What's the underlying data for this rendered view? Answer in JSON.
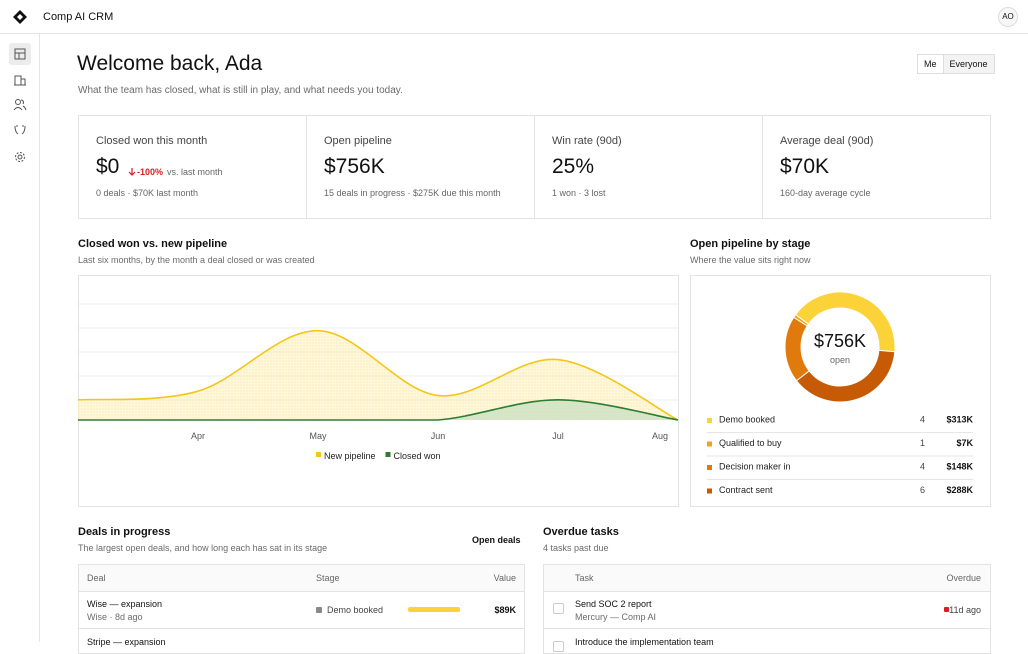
{
  "header": {
    "app_name": "Comp AI CRM",
    "avatar": "AO"
  },
  "welcome": {
    "title": "Welcome back, Ada",
    "subtitle": "What the team has closed, what is still in play, and what needs you today.",
    "toggle": [
      "Me",
      "Everyone"
    ]
  },
  "kpis": [
    {
      "label": "Closed won this month",
      "value": "$0",
      "delta": "-100%",
      "delta_note": "vs. last month",
      "note": "0 deals · $70K last month"
    },
    {
      "label": "Open pipeline",
      "value": "$756K",
      "note": "15 deals in progress · $275K due this month"
    },
    {
      "label": "Win rate (90d)",
      "value": "25%",
      "note": "1 won · 3 lost"
    },
    {
      "label": "Average deal (90d)",
      "value": "$70K",
      "note": "160-day average cycle"
    }
  ],
  "trend_chart": {
    "type": "area",
    "title": "Closed won vs. new pipeline",
    "subtitle": "Last six months, by the month a deal closed or was created",
    "categories": [
      null,
      "Apr",
      "May",
      "Jun",
      "Jul",
      "Aug"
    ],
    "ylim": [
      0,
      500
    ],
    "series": [
      {
        "name": "New pipeline",
        "color": "#f5c518",
        "values": [
          70,
          100,
          310,
          85,
          210,
          0
        ]
      },
      {
        "name": "Closed won",
        "color": "#2e7d32",
        "values": [
          0,
          0,
          0,
          0,
          70,
          0
        ]
      }
    ]
  },
  "stage_chart": {
    "type": "donut",
    "title": "Open pipeline by stage",
    "subtitle": "Where the value sits right now",
    "center_value": "$756K",
    "center_label": "open",
    "stages": [
      {
        "name": "Demo booked",
        "count": 4,
        "value": 313,
        "value_label": "$313K",
        "color": "#fbd338"
      },
      {
        "name": "Qualified to buy",
        "count": 1,
        "value": 7,
        "value_label": "$7K",
        "color": "#f1a31e"
      },
      {
        "name": "Decision maker in",
        "count": 4,
        "value": 148,
        "value_label": "$148K",
        "color": "#e07a0d"
      },
      {
        "name": "Contract sent",
        "count": 6,
        "value": 288,
        "value_label": "$288K",
        "color": "#c65a05"
      }
    ]
  },
  "deals": {
    "title": "Deals in progress",
    "subtitle": "The largest open deals, and how long each has sat in its stage",
    "action": "Open deals",
    "columns": [
      "Deal",
      "Stage",
      "Value"
    ],
    "rows": [
      {
        "name": "Wise — expansion",
        "meta": "Wise · 8d ago",
        "stage": "Demo booked",
        "value": "$89K"
      },
      {
        "name": "Stripe — expansion"
      }
    ]
  },
  "tasks": {
    "title": "Overdue tasks",
    "subtitle": "4 tasks past due",
    "columns": [
      "Task",
      "Overdue"
    ],
    "rows": [
      {
        "title": "Send SOC 2 report",
        "meta": "Mercury — Comp AI",
        "overdue": "11d ago"
      },
      {
        "title": "Introduce the implementation team"
      }
    ]
  }
}
